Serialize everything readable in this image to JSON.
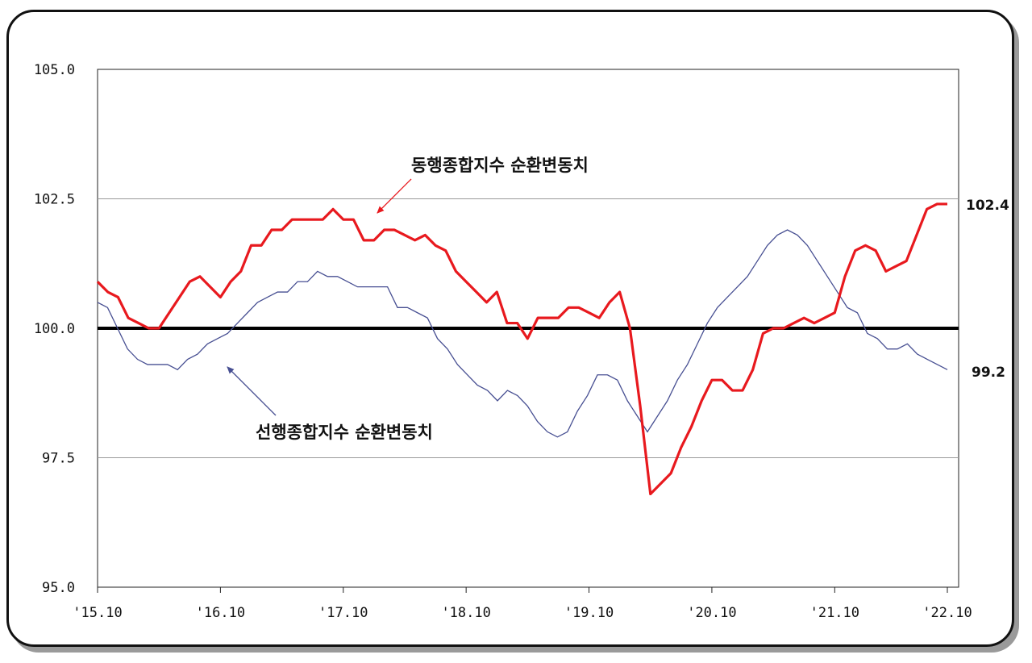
{
  "chart_data": {
    "type": "line",
    "title": "",
    "xlabel": "",
    "ylabel": "",
    "ylim": [
      95.0,
      105.0
    ],
    "yticks": [
      "105.0",
      "102.5",
      "100.0",
      "97.5",
      "95.0"
    ],
    "ytick_values": [
      105.0,
      102.5,
      100.0,
      97.5,
      95.0
    ],
    "xticks": [
      "'15.10",
      "'16.10",
      "'17.10",
      "'18.10",
      "'19.10",
      "'20.10",
      "'21.10",
      "'22.10"
    ],
    "reference_line": 100.0,
    "grid": "horizontal",
    "series": [
      {
        "name": "동행종합지수 순환변동치",
        "color": "#e8191e",
        "end_label": "102.4",
        "values": [
          100.9,
          100.7,
          100.6,
          100.2,
          100.1,
          100.0,
          100.0,
          100.3,
          100.6,
          100.9,
          101.0,
          100.8,
          100.6,
          100.9,
          101.1,
          101.6,
          101.6,
          101.9,
          101.9,
          102.1,
          102.1,
          102.1,
          102.1,
          102.3,
          102.1,
          102.1,
          101.7,
          101.7,
          101.9,
          101.9,
          101.8,
          101.7,
          101.8,
          101.6,
          101.5,
          101.1,
          100.9,
          100.7,
          100.5,
          100.7,
          100.1,
          100.1,
          99.8,
          100.2,
          100.2,
          100.2,
          100.4,
          100.4,
          100.3,
          100.2,
          100.5,
          100.7,
          100.0,
          98.5,
          96.8,
          97.0,
          97.2,
          97.7,
          98.1,
          98.6,
          99.0,
          99.0,
          98.8,
          98.8,
          99.2,
          99.9,
          100.0,
          100.0,
          100.1,
          100.2,
          100.1,
          100.2,
          100.3,
          101.0,
          101.5,
          101.6,
          101.5,
          101.1,
          101.2,
          101.3,
          101.8,
          102.3,
          102.4,
          102.4
        ]
      },
      {
        "name": "선행종합지수 순환변동치",
        "color": "#474f92",
        "end_label": "99.2",
        "values": [
          100.5,
          100.4,
          100.0,
          99.6,
          99.4,
          99.3,
          99.3,
          99.3,
          99.2,
          99.4,
          99.5,
          99.7,
          99.8,
          99.9,
          100.1,
          100.3,
          100.5,
          100.6,
          100.7,
          100.7,
          100.9,
          100.9,
          101.1,
          101.0,
          101.0,
          100.9,
          100.8,
          100.8,
          100.8,
          100.8,
          100.4,
          100.4,
          100.3,
          100.2,
          99.8,
          99.6,
          99.3,
          99.1,
          98.9,
          98.8,
          98.6,
          98.8,
          98.7,
          98.5,
          98.2,
          98.0,
          97.9,
          98.0,
          98.4,
          98.7,
          99.1,
          99.1,
          99.0,
          98.6,
          98.3,
          98.0,
          98.3,
          98.6,
          99.0,
          99.3,
          99.7,
          100.1,
          100.4,
          100.6,
          100.8,
          101.0,
          101.3,
          101.6,
          101.8,
          101.9,
          101.8,
          101.6,
          101.3,
          101.0,
          100.7,
          100.4,
          100.3,
          99.9,
          99.8,
          99.6,
          99.6,
          99.7,
          99.5,
          99.4,
          99.3,
          99.2
        ]
      }
    ],
    "annotations": [
      {
        "text": "동행종합지수 순환변동치",
        "series": 0
      },
      {
        "text": "선행종합지수 순환변동치",
        "series": 1
      }
    ]
  }
}
